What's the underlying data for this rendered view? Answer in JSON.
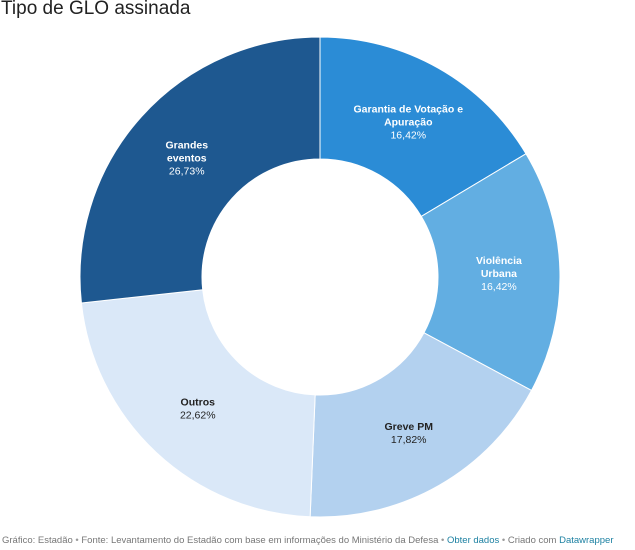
{
  "title": "Tipo de GLO assinada",
  "chart_data": {
    "type": "pie",
    "title": "Tipo de GLO assinada",
    "categories": [
      "Garantia de Votação e Apuração",
      "Violência Urbana",
      "Greve PM",
      "Outros",
      "Grandes eventos"
    ],
    "values": [
      16.42,
      16.42,
      17.82,
      22.62,
      26.73
    ],
    "value_labels": [
      "16,42%",
      "16,42%",
      "17,82%",
      "22,62%",
      "26,73%"
    ],
    "label_lines": [
      [
        "Garantia de Votação e",
        "Apuração"
      ],
      [
        "Violência",
        "Urbana"
      ],
      [
        "Greve PM"
      ],
      [
        "Outros"
      ],
      [
        "Grandes",
        "eventos"
      ]
    ],
    "colors": [
      "#2b8cd6",
      "#62aee2",
      "#b3d1ef",
      "#dae8f8",
      "#1e5890"
    ],
    "label_colors": [
      "#ffffff",
      "#ffffff",
      "#222222",
      "#222222",
      "#ffffff"
    ],
    "legend": "none"
  },
  "footer": {
    "source": "Gráfico: Estadão",
    "sep": "•",
    "text": "Fonte: Levantamento do Estadão com base em informações do Ministério da Defesa",
    "get_data": "Obter dados",
    "created": "Criado com",
    "tool": "Datawrapper"
  }
}
